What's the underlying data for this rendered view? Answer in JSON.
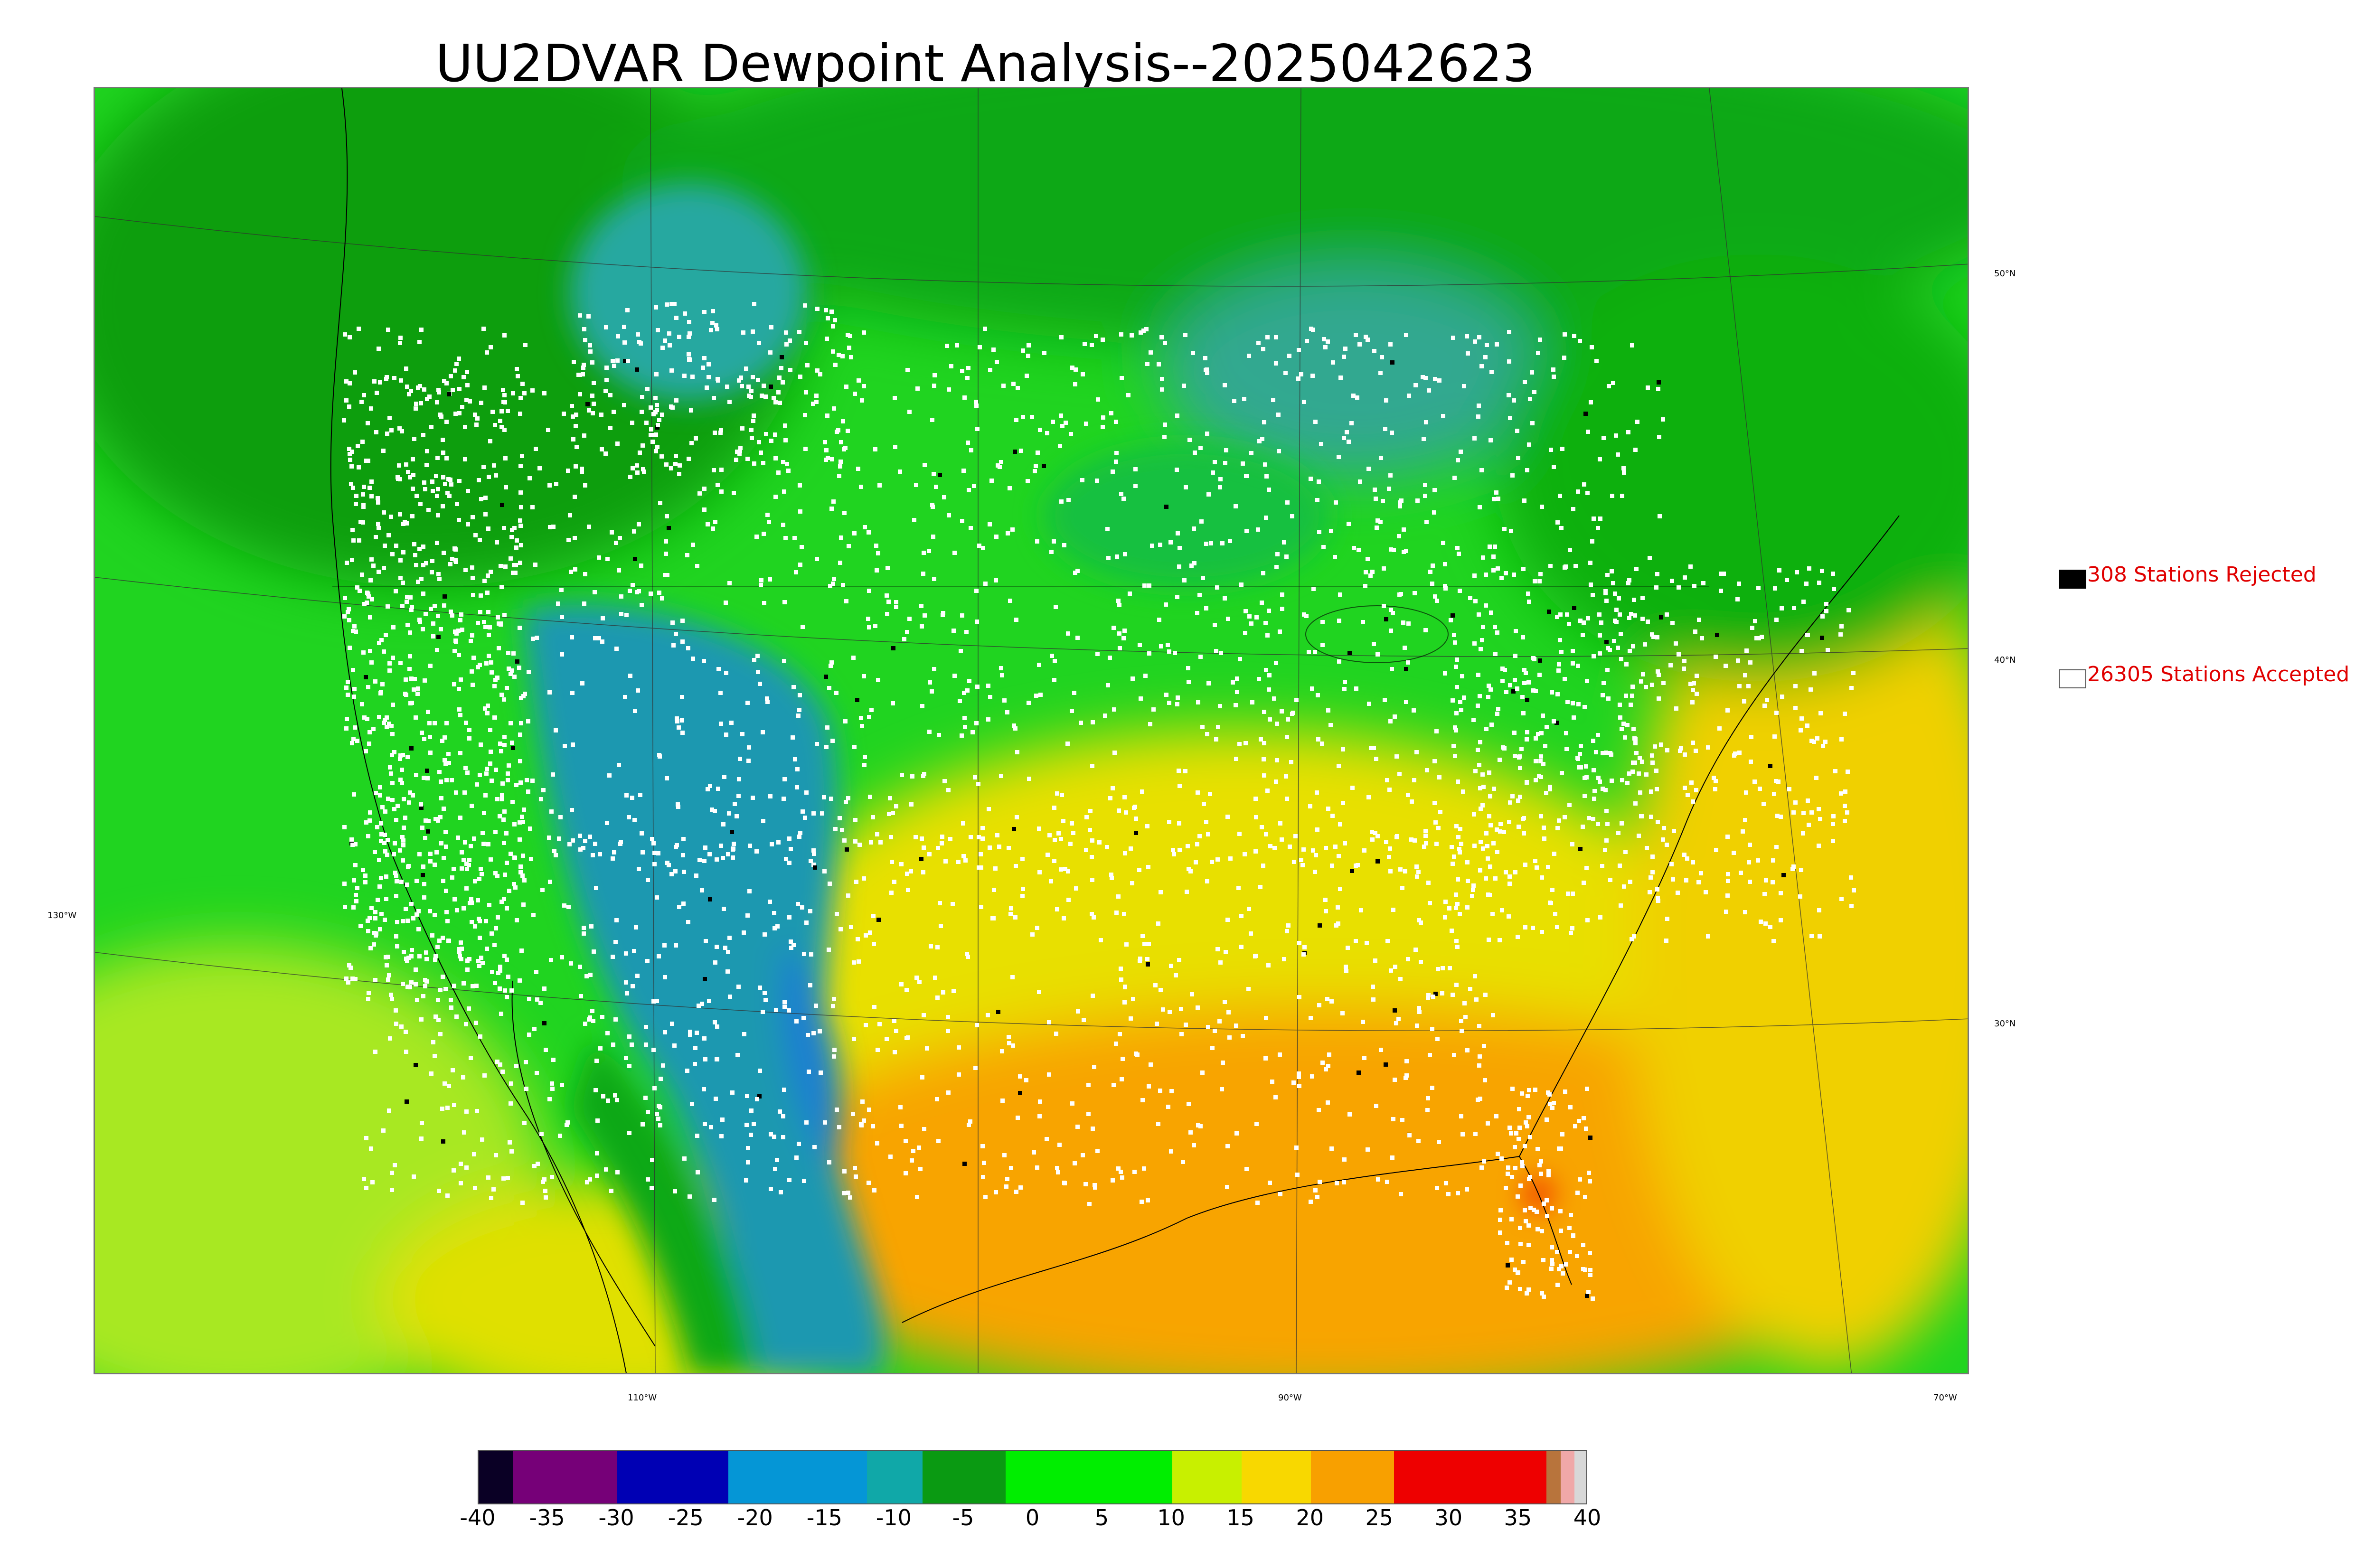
{
  "title": "UU2DVAR Dewpoint Analysis--2025042623",
  "legend": {
    "rejected": {
      "label": "308 Stations Rejected",
      "swatch_color": "#000000"
    },
    "accepted": {
      "label": "26305 Stations Accepted",
      "swatch_color": "#ffffff"
    }
  },
  "graticule": {
    "lat_labels": [
      "50°N",
      "40°N",
      "30°N"
    ],
    "lon_labels": [
      "130°W",
      "110°W",
      "90°W",
      "70°W"
    ]
  },
  "colorbar": {
    "ticks": [
      "-40",
      "-35",
      "-30",
      "-25",
      "-20",
      "-15",
      "-10",
      "-5",
      "0",
      "5",
      "10",
      "15",
      "20",
      "25",
      "30",
      "35",
      "40"
    ],
    "range": [
      -40,
      40
    ],
    "segments": [
      {
        "from": -40,
        "to": -37.5,
        "color": "#0a0025"
      },
      {
        "from": -37.5,
        "to": -30,
        "color": "#760078"
      },
      {
        "from": -30,
        "to": -22,
        "color": "#0000b4"
      },
      {
        "from": -22,
        "to": -12,
        "color": "#0596d6"
      },
      {
        "from": -12,
        "to": -8,
        "color": "#10a8a8"
      },
      {
        "from": -8,
        "to": -2,
        "color": "#0a9a12"
      },
      {
        "from": -2,
        "to": 10,
        "color": "#00ee00"
      },
      {
        "from": 10,
        "to": 15,
        "color": "#c8f000"
      },
      {
        "from": 15,
        "to": 20,
        "color": "#f8d800"
      },
      {
        "from": 20,
        "to": 26,
        "color": "#f8a000"
      },
      {
        "from": 26,
        "to": 37,
        "color": "#ee0000"
      },
      {
        "from": 37,
        "to": 38,
        "color": "#b8743c"
      },
      {
        "from": 38,
        "to": 39,
        "color": "#f0a8a8"
      },
      {
        "from": 39,
        "to": 40,
        "color": "#d8d8d8"
      }
    ]
  },
  "colors": {
    "dark_green": "#0e9e10",
    "green": "#18d01a",
    "bright_green": "#00ee00",
    "yellow_green": "#c8f000",
    "yellow": "#f4d800",
    "orange": "#f8a800",
    "teal": "#1a9a9a",
    "blue": "#1a88c8",
    "accepted_station": "#ffffff",
    "rejected_station": "#000000"
  }
}
